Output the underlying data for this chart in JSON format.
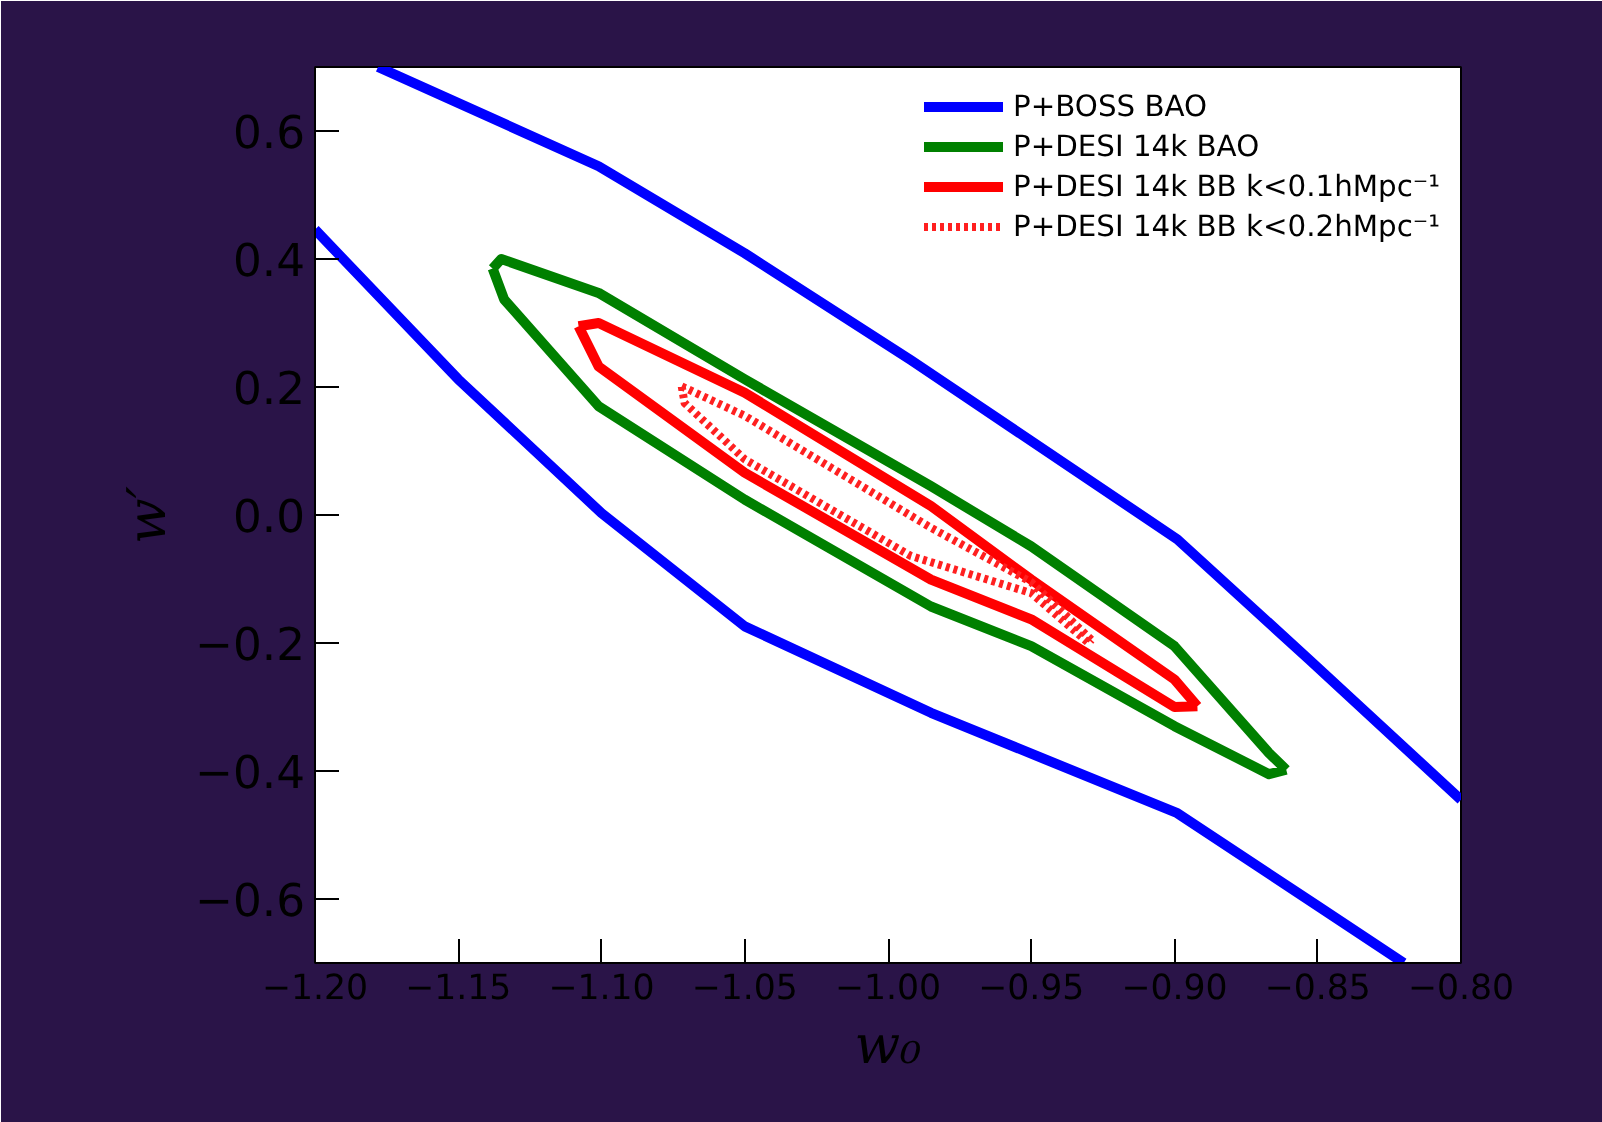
{
  "chart_data": {
    "type": "line",
    "xlabel": "w₀",
    "ylabel": "w′",
    "xlim": [
      -1.2,
      -0.8
    ],
    "ylim": [
      -0.7,
      0.7
    ],
    "xticks": [
      {
        "value": -1.2,
        "label": "−1.20"
      },
      {
        "value": -1.15,
        "label": "−1.15"
      },
      {
        "value": -1.1,
        "label": "−1.10"
      },
      {
        "value": -1.05,
        "label": "−1.05"
      },
      {
        "value": -1.0,
        "label": "−1.00"
      },
      {
        "value": -0.95,
        "label": "−0.95"
      },
      {
        "value": -0.9,
        "label": "−0.90"
      },
      {
        "value": -0.85,
        "label": "−0.85"
      },
      {
        "value": -0.8,
        "label": "−0.80"
      }
    ],
    "yticks": [
      {
        "value": -0.6,
        "label": "−0.6"
      },
      {
        "value": -0.4,
        "label": "−0.4"
      },
      {
        "value": -0.2,
        "label": "−0.2"
      },
      {
        "value": 0.0,
        "label": "0.0"
      },
      0.2,
      0.4,
      0.6
    ],
    "grid": false,
    "legend": "top right",
    "series": [
      {
        "name": "P+BOSS BAO",
        "color": "#0000ff",
        "line_style": "solid",
        "x": [
          -1.178,
          -1.101,
          -1.05,
          -0.992,
          -0.899,
          -0.853,
          -0.8,
          null,
          -1.2,
          -1.15,
          -1.1,
          -1.05,
          -0.985,
          -0.899,
          -0.85,
          -0.82
        ],
        "values": [
          0.7,
          0.545,
          0.409,
          0.242,
          -0.038,
          -0.226,
          -0.445,
          null,
          0.446,
          0.212,
          0.003,
          -0.174,
          -0.309,
          -0.466,
          -0.611,
          -0.7
        ]
      },
      {
        "name": "P+DESI 14k BAO",
        "color": "#008000",
        "line_style": "solid",
        "x": [
          -1.138,
          -1.135,
          -1.101,
          -1.05,
          -0.985,
          -0.95,
          -0.9,
          -0.867,
          -0.861,
          null,
          -1.138,
          -1.134,
          -1.101,
          -1.05,
          -0.985,
          -0.95,
          -0.9,
          -0.867,
          -0.861
        ],
        "values": [
          0.385,
          0.4,
          0.347,
          0.212,
          0.045,
          -0.049,
          -0.205,
          -0.372,
          -0.398,
          null,
          0.385,
          0.337,
          0.17,
          0.024,
          -0.143,
          -0.205,
          -0.33,
          -0.405,
          -0.398
        ]
      },
      {
        "name": "P+DESI 14k BB k<0.1hMpc⁻¹",
        "color": "#ff0000",
        "line_style": "solid",
        "x": [
          -1.108,
          -1.101,
          -1.05,
          -0.985,
          -0.95,
          -0.9,
          -0.892,
          null,
          -1.108,
          -1.101,
          -1.05,
          -0.985,
          -0.95,
          -0.9,
          -0.892
        ],
        "values": [
          0.295,
          0.3,
          0.191,
          0.014,
          -0.101,
          -0.257,
          -0.299,
          null,
          0.295,
          0.232,
          0.066,
          -0.101,
          -0.163,
          -0.3,
          -0.299
        ]
      },
      {
        "name": "P+DESI 14k BB k<0.2hMpc⁻¹",
        "color": "#ff2020",
        "line_style": "dotted",
        "x": [
          -1.072,
          -1.05,
          -0.985,
          -0.95,
          -0.929,
          null,
          -1.072,
          -1.071,
          -1.05,
          -0.992,
          -0.95,
          -0.93,
          -0.929
        ],
        "values": [
          0.201,
          0.155,
          -0.02,
          -0.105,
          -0.195,
          null,
          0.201,
          0.175,
          0.087,
          -0.064,
          -0.122,
          -0.2,
          -0.195
        ]
      }
    ]
  }
}
